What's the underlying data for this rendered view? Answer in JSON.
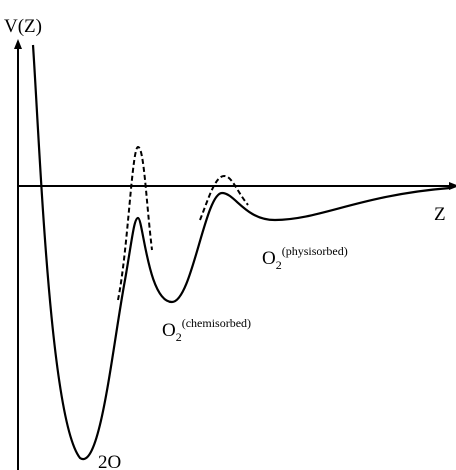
{
  "axes": {
    "y_label": "V(Z)",
    "x_label": "Z"
  },
  "labels": {
    "physisorbed": {
      "base": "O",
      "sub": "2",
      "sup": "(physisorbed)"
    },
    "chemisorbed": {
      "base": "O",
      "sub": "2",
      "sup": "(chemisorbed)"
    },
    "dissociated": "2O"
  }
}
